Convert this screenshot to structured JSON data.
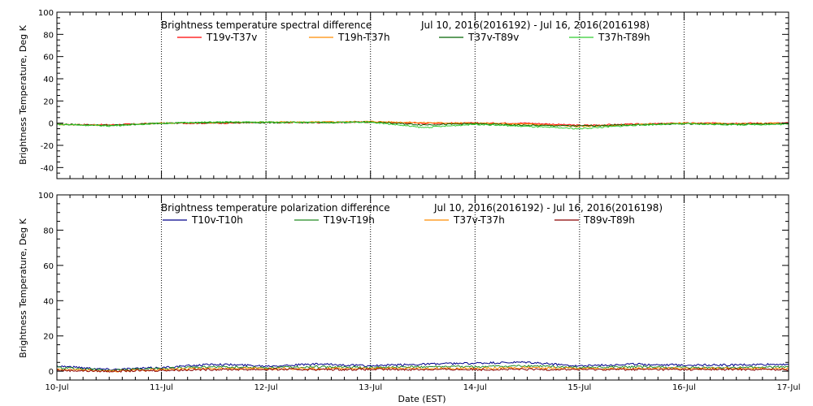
{
  "chart_data": [
    {
      "type": "line",
      "title": "Brightness temperature spectral difference",
      "date_range": "Jul 10, 2016(2016192) - Jul 16, 2016(2016198)",
      "ylabel": "Brightness Temperature, Deg K",
      "xlabel": "",
      "ylim": [
        -50,
        100
      ],
      "yticks": [
        -40,
        -20,
        0,
        20,
        40,
        60,
        80,
        100
      ],
      "xlim": [
        "2016-07-10",
        "2016-07-17"
      ],
      "grid": "vertical dotted at day boundaries",
      "legend_placement": "top",
      "x": [
        "2016-07-10 00:00",
        "2016-07-10 12:00",
        "2016-07-11 00:00",
        "2016-07-11 12:00",
        "2016-07-12 00:00",
        "2016-07-12 12:00",
        "2016-07-13 00:00",
        "2016-07-13 12:00",
        "2016-07-14 00:00",
        "2016-07-14 12:00",
        "2016-07-15 00:00",
        "2016-07-15 12:00",
        "2016-07-16 00:00",
        "2016-07-16 12:00",
        "2016-07-17 00:00"
      ],
      "series": [
        {
          "name": "T19v-T37v",
          "color": "#ff0000",
          "values": [
            -1,
            -1.5,
            0,
            0,
            0.5,
            0.5,
            1,
            0,
            0,
            0,
            -2,
            -1,
            0,
            0,
            0
          ]
        },
        {
          "name": "T19h-T37h",
          "color": "#ff8c00",
          "values": [
            -1,
            -2,
            0,
            0.5,
            1,
            1,
            1.5,
            0.5,
            0,
            -1,
            -3,
            -1.5,
            0,
            -0.5,
            0
          ]
        },
        {
          "name": "T37v-T89v",
          "color": "#006400",
          "values": [
            -1,
            -2,
            0,
            0.5,
            0.5,
            0.5,
            1,
            -1.5,
            -0.5,
            -2,
            -2.5,
            -1.5,
            -0.5,
            -1,
            -0.5
          ]
        },
        {
          "name": "T37h-T89h",
          "color": "#32cd32",
          "values": [
            -1,
            -2.5,
            0,
            1,
            1,
            0.5,
            1,
            -4,
            -1,
            -3,
            -5,
            -2,
            -0.5,
            -1.5,
            -1
          ]
        }
      ]
    },
    {
      "type": "line",
      "title": "Brightness temperature polarization difference",
      "date_range": "Jul 10, 2016(2016192) - Jul 16, 2016(2016198)",
      "ylabel": "Brightness Temperature, Deg K",
      "xlabel": "Date (EST)",
      "ylim": [
        -5,
        100
      ],
      "yticks": [
        0,
        20,
        40,
        60,
        80,
        100
      ],
      "xlim": [
        "2016-07-10",
        "2016-07-17"
      ],
      "xticks": [
        "10-Jul",
        "11-Jul",
        "12-Jul",
        "13-Jul",
        "14-Jul",
        "15-Jul",
        "16-Jul",
        "17-Jul"
      ],
      "grid": "vertical dotted at day boundaries",
      "legend_placement": "top",
      "x": [
        "2016-07-10 00:00",
        "2016-07-10 12:00",
        "2016-07-11 00:00",
        "2016-07-11 12:00",
        "2016-07-12 00:00",
        "2016-07-12 12:00",
        "2016-07-13 00:00",
        "2016-07-13 12:00",
        "2016-07-14 00:00",
        "2016-07-14 12:00",
        "2016-07-15 00:00",
        "2016-07-15 12:00",
        "2016-07-16 00:00",
        "2016-07-16 12:00",
        "2016-07-17 00:00"
      ],
      "series": [
        {
          "name": "T10v-T10h",
          "color": "#00008b",
          "values": [
            3,
            1,
            2,
            4,
            3,
            4,
            3,
            4,
            4.5,
            5,
            3,
            4,
            3.5,
            3.5,
            4
          ]
        },
        {
          "name": "T19v-T19h",
          "color": "#228b22",
          "values": [
            2,
            0.5,
            1.5,
            2.5,
            2,
            2.5,
            2,
            2.5,
            2.5,
            3,
            2,
            2.5,
            2,
            2,
            2.5
          ]
        },
        {
          "name": "T37v-T37h",
          "color": "#ff8c00",
          "values": [
            1,
            0,
            1,
            1.5,
            1.5,
            1.5,
            1.5,
            1.5,
            1.5,
            2,
            1.5,
            1.5,
            1.5,
            1.5,
            1.5
          ]
        },
        {
          "name": "T89v-T89h",
          "color": "#8b0000",
          "values": [
            0.5,
            0,
            0.5,
            1,
            1,
            1,
            1,
            1,
            1,
            1,
            1,
            1,
            1,
            1,
            1
          ]
        }
      ]
    }
  ]
}
